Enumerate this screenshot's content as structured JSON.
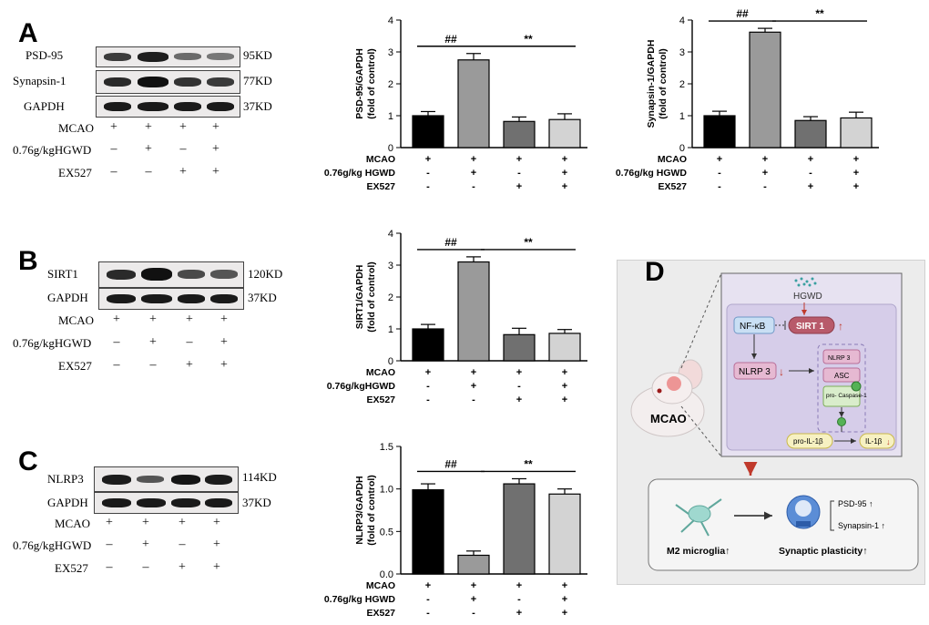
{
  "panels": {
    "A": {
      "letter": "A",
      "blots": [
        {
          "label": "PSD-95",
          "kd": "95KD"
        },
        {
          "label": "Synapsin-1",
          "kd": "77KD"
        },
        {
          "label": "GAPDH",
          "kd": "37KD"
        }
      ],
      "conditions": [
        {
          "label": "MCAO",
          "signs": [
            "+",
            "+",
            "+",
            "+"
          ]
        },
        {
          "label": "0.76g/kgHGWD",
          "signs": [
            "–",
            "+",
            "–",
            "+"
          ]
        },
        {
          "label": "EX527",
          "signs": [
            "–",
            "–",
            "+",
            "+"
          ]
        }
      ]
    },
    "B": {
      "letter": "B",
      "blots": [
        {
          "label": "SIRT1",
          "kd": "120KD"
        },
        {
          "label": "GAPDH",
          "kd": "37KD"
        }
      ],
      "conditions": [
        {
          "label": "MCAO",
          "signs": [
            "+",
            "+",
            "+",
            "+"
          ]
        },
        {
          "label": "0.76g/kgHGWD",
          "signs": [
            "–",
            "+",
            "–",
            "+"
          ]
        },
        {
          "label": "EX527",
          "signs": [
            "–",
            "–",
            "+",
            "+"
          ]
        }
      ]
    },
    "C": {
      "letter": "C",
      "blots": [
        {
          "label": "NLRP3",
          "kd": "114KD"
        },
        {
          "label": "GAPDH",
          "kd": "37KD"
        }
      ],
      "conditions": [
        {
          "label": "MCAO",
          "signs": [
            "+",
            "+",
            "+",
            "+"
          ]
        },
        {
          "label": "0.76g/kgHGWD",
          "signs": [
            "–",
            "+",
            "–",
            "+"
          ]
        },
        {
          "label": "EX527",
          "signs": [
            "–",
            "–",
            "+",
            "+"
          ]
        }
      ]
    },
    "D": {
      "letter": "D",
      "mouse_label": "MCAO",
      "hgwd": "HGWD",
      "nfkb": "NF-κB",
      "sirt1": "SIRT 1",
      "nlrp3": "NLRP 3",
      "inflam_nlrp3": "NLRP 3",
      "asc": "ASC",
      "procasp": "pro-\nCaspase-1",
      "proil": "pro-IL-1β",
      "il": "IL-1β",
      "microglia": "M2 microglia↑",
      "plasticity": "Synaptic plasticity↑",
      "psd95": "PSD-95 ↑",
      "synapsin": "Synapsin-1 ↑"
    }
  },
  "chart_data": [
    {
      "type": "bar",
      "ylabel": "PSD-95/GAPDH\n(fold of control)",
      "ylim": [
        0,
        4
      ],
      "yticks": [
        0,
        1,
        2,
        3,
        4
      ],
      "values": [
        1.0,
        2.75,
        0.82,
        0.88
      ],
      "errors": [
        0.13,
        0.2,
        0.14,
        0.18
      ],
      "colors": [
        "#000000",
        "#9a9a9a",
        "#707070",
        "#d3d3d3"
      ],
      "annotations": [
        {
          "text": "##",
          "from": 0,
          "to": 1
        },
        {
          "text": "**",
          "from": 1,
          "to": 3
        }
      ],
      "row_labels": [
        "MCAO",
        "0.76g/kg HGWD",
        "EX527"
      ],
      "row_signs": [
        [
          "+",
          "+",
          "+",
          "+"
        ],
        [
          "-",
          "+",
          "-",
          "+"
        ],
        [
          "-",
          "-",
          "+",
          "+"
        ]
      ]
    },
    {
      "type": "bar",
      "ylabel": "Synapsin-1/GAPDH\n(fold of control)",
      "ylim": [
        0,
        4
      ],
      "yticks": [
        0,
        1,
        2,
        3,
        4
      ],
      "values": [
        1.0,
        3.62,
        0.85,
        0.93
      ],
      "errors": [
        0.14,
        0.12,
        0.12,
        0.18
      ],
      "colors": [
        "#000000",
        "#9a9a9a",
        "#707070",
        "#d3d3d3"
      ],
      "annotations": [
        {
          "text": "##",
          "from": 0,
          "to": 1
        },
        {
          "text": "**",
          "from": 1,
          "to": 3
        }
      ],
      "row_labels": [
        "MCAO",
        "0.76g/kg HGWD",
        "EX527"
      ],
      "row_signs": [
        [
          "+",
          "+",
          "+",
          "+"
        ],
        [
          "-",
          "+",
          "-",
          "+"
        ],
        [
          "-",
          "-",
          "+",
          "+"
        ]
      ]
    },
    {
      "type": "bar",
      "ylabel": "SIRT1/GAPDH\n(fold of control)",
      "ylim": [
        0,
        4
      ],
      "yticks": [
        0,
        1,
        2,
        3,
        4
      ],
      "values": [
        1.0,
        3.1,
        0.82,
        0.86
      ],
      "errors": [
        0.14,
        0.16,
        0.2,
        0.12
      ],
      "colors": [
        "#000000",
        "#9a9a9a",
        "#707070",
        "#d3d3d3"
      ],
      "annotations": [
        {
          "text": "##",
          "from": 0,
          "to": 1
        },
        {
          "text": "**",
          "from": 1,
          "to": 3
        }
      ],
      "row_labels": [
        "MCAO",
        "0.76g/kgHGWD",
        "EX527"
      ],
      "row_signs": [
        [
          "+",
          "+",
          "+",
          "+"
        ],
        [
          "-",
          "+",
          "-",
          "+"
        ],
        [
          "-",
          "-",
          "+",
          "+"
        ]
      ]
    },
    {
      "type": "bar",
      "ylabel": "NLRP3/GAPDH\n(fold of control)",
      "ylim": [
        0,
        1.5
      ],
      "yticks": [
        0.0,
        0.5,
        1.0,
        1.5
      ],
      "ytick_labels": [
        "0.0",
        "0.5",
        "1.0",
        "1.5"
      ],
      "values": [
        0.99,
        0.22,
        1.06,
        0.94
      ],
      "errors": [
        0.07,
        0.05,
        0.06,
        0.06
      ],
      "colors": [
        "#000000",
        "#9a9a9a",
        "#707070",
        "#d3d3d3"
      ],
      "annotations": [
        {
          "text": "##",
          "from": 0,
          "to": 1
        },
        {
          "text": "**",
          "from": 1,
          "to": 3
        }
      ],
      "row_labels": [
        "MCAO",
        "0.76g/kg HGWD",
        "EX527"
      ],
      "row_signs": [
        [
          "+",
          "+",
          "+",
          "+"
        ],
        [
          "-",
          "+",
          "-",
          "+"
        ],
        [
          "-",
          "-",
          "+",
          "+"
        ]
      ]
    }
  ]
}
